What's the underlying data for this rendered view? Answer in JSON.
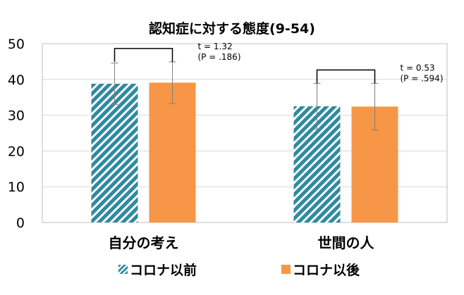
{
  "chart_data": {
    "type": "bar",
    "title": "認知症に対する態度(9-54)",
    "xlabel": "",
    "ylabel": "",
    "categories": [
      "自分の考え",
      "世間の人"
    ],
    "ylim": [
      0,
      50
    ],
    "yticks": [
      0,
      10,
      20,
      30,
      40,
      50
    ],
    "grid": true,
    "legend_position": "bottom",
    "series": [
      {
        "name": "コロナ以前",
        "values": [
          38.8,
          32.5
        ],
        "error": [
          5.8,
          6.4
        ],
        "color": "#2e8aa0",
        "pattern": "diagonal-stripes"
      },
      {
        "name": "コロナ以後",
        "values": [
          39.1,
          32.4
        ],
        "error": [
          5.8,
          6.5
        ],
        "color": "#f79646",
        "pattern": "solid"
      }
    ],
    "annotations": [
      {
        "category": "自分の考え",
        "stat_line": "t = 1.32",
        "p_line": "(P = .186)"
      },
      {
        "category": "世間の人",
        "stat_line": "t = 0.53",
        "p_line": "(P = .594)"
      }
    ]
  }
}
